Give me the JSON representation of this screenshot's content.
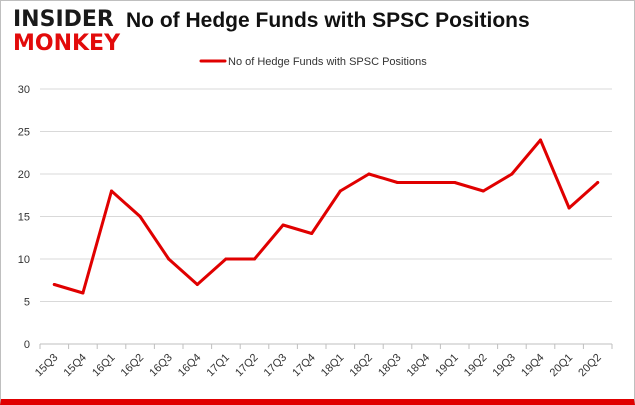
{
  "logo": {
    "line1": "INSIDER",
    "line2": "MONKEY"
  },
  "chart_data": {
    "type": "line",
    "title": "No of Hedge Funds with SPSC Positions",
    "xlabel": "",
    "ylabel": "",
    "categories": [
      "15Q3",
      "15Q4",
      "16Q1",
      "16Q2",
      "16Q3",
      "16Q4",
      "17Q1",
      "17Q2",
      "17Q3",
      "17Q4",
      "18Q1",
      "18Q2",
      "18Q3",
      "18Q4",
      "19Q1",
      "19Q2",
      "19Q3",
      "19Q4",
      "20Q1",
      "20Q2"
    ],
    "series": [
      {
        "name": "No of Hedge Funds with SPSC Positions",
        "values": [
          7,
          6,
          18,
          15,
          10,
          7,
          10,
          10,
          14,
          13,
          18,
          20,
          19,
          19,
          19,
          18,
          20,
          24,
          16,
          19
        ],
        "color": "#e00000"
      }
    ],
    "ylim": [
      0,
      30
    ],
    "yticks": [
      0,
      5,
      10,
      15,
      20,
      25,
      30
    ],
    "grid": "horizontal",
    "legend": "top-center"
  }
}
